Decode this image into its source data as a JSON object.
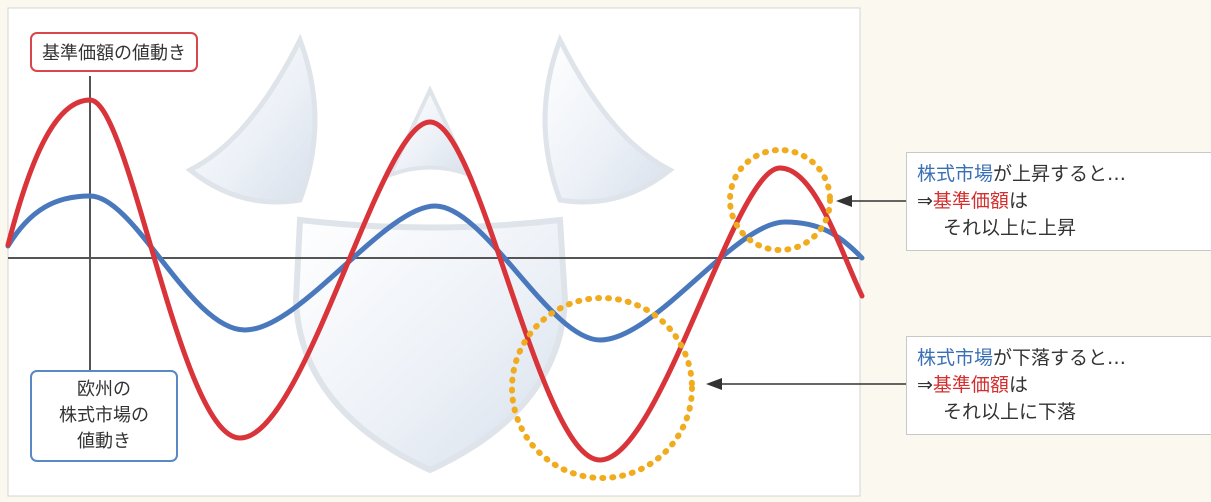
{
  "diagram": {
    "nav_label": "基準価額の値動き",
    "market_label": [
      "欧州の",
      "株式市場の",
      "値動き"
    ],
    "callout_rise": {
      "subject": "株式市場",
      "suffix": "が上昇すると…",
      "arrow_prefix": "⇒",
      "nav_term": "基準価額",
      "particle": "は",
      "result": "それ以上に上昇"
    },
    "callout_fall": {
      "subject": "株式市場",
      "suffix": "が下落すると…",
      "arrow_prefix": "⇒",
      "nav_term": "基準価額",
      "particle": "は",
      "result": "それ以上に下落"
    }
  },
  "colors": {
    "nav_line": "#d8343a",
    "market_line": "#4a78bd",
    "highlight_ring": "#f0ac1e",
    "axis": "#555555",
    "shield": "#c9d5e6"
  }
}
